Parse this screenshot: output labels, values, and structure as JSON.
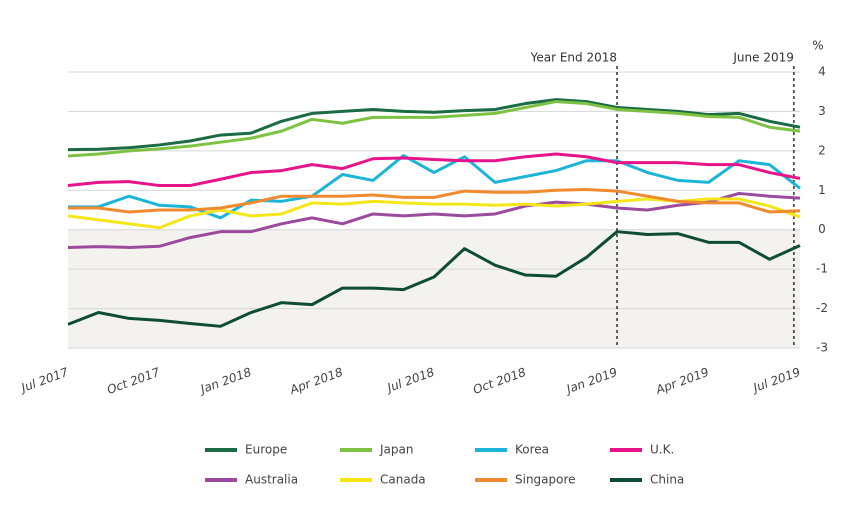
{
  "chart_data": {
    "type": "line",
    "y_label": "%",
    "categories": [
      "Jul 2017",
      null,
      null,
      "Oct 2017",
      null,
      null,
      "Jan 2018",
      null,
      null,
      "Apr 2018",
      null,
      null,
      "Jul 2018",
      null,
      null,
      "Oct 2018",
      null,
      null,
      "Jan 2019",
      null,
      null,
      "Apr 2019",
      null,
      null,
      "Jul 2019"
    ],
    "ylim": [
      -3,
      4
    ],
    "yticks": [
      4,
      3,
      2,
      1,
      0,
      -1,
      -2,
      -3
    ],
    "grid": true,
    "annotations": [
      {
        "text": "Year End 2018",
        "x": 18
      },
      {
        "text": "June 2019",
        "x": 23.8
      }
    ],
    "series": [
      {
        "name": "Europe",
        "color": "#1b6b44",
        "values": [
          2.03,
          2.04,
          2.08,
          2.15,
          2.25,
          2.4,
          2.45,
          2.75,
          2.95,
          3.0,
          3.05,
          3.0,
          2.98,
          3.02,
          3.05,
          3.2,
          3.3,
          3.25,
          3.1,
          3.05,
          3.0,
          2.92,
          2.95,
          2.75,
          2.6
        ]
      },
      {
        "name": "Japan",
        "color": "#7dc242",
        "values": [
          1.87,
          1.92,
          2.0,
          2.05,
          2.12,
          2.22,
          2.32,
          2.5,
          2.8,
          2.7,
          2.85,
          2.85,
          2.85,
          2.9,
          2.95,
          3.1,
          3.25,
          3.2,
          3.05,
          3.0,
          2.95,
          2.87,
          2.85,
          2.6,
          2.5
        ]
      },
      {
        "name": "Korea",
        "color": "#1cb5d8",
        "values": [
          0.58,
          0.58,
          0.85,
          0.62,
          0.58,
          0.3,
          0.75,
          0.72,
          0.85,
          1.4,
          1.25,
          1.88,
          1.45,
          1.85,
          1.2,
          1.35,
          1.5,
          1.75,
          1.75,
          1.45,
          1.25,
          1.2,
          1.75,
          1.65,
          1.05
        ]
      },
      {
        "name": "U.K.",
        "color": "#e6138a",
        "values": [
          1.12,
          1.2,
          1.22,
          1.12,
          1.12,
          1.28,
          1.45,
          1.5,
          1.65,
          1.55,
          1.8,
          1.82,
          1.78,
          1.75,
          1.75,
          1.85,
          1.92,
          1.85,
          1.7,
          1.7,
          1.7,
          1.65,
          1.65,
          1.45,
          1.3
        ]
      },
      {
        "name": "Australia",
        "color": "#9b4a9d",
        "values": [
          -0.45,
          -0.43,
          -0.45,
          -0.42,
          -0.2,
          -0.05,
          -0.05,
          0.15,
          0.3,
          0.15,
          0.4,
          0.35,
          0.4,
          0.35,
          0.4,
          0.6,
          0.7,
          0.65,
          0.55,
          0.5,
          0.62,
          0.7,
          0.92,
          0.85,
          0.8
        ]
      },
      {
        "name": "Canada",
        "color": "#f5e61a",
        "values": [
          0.35,
          0.25,
          0.15,
          0.05,
          0.35,
          0.5,
          0.35,
          0.4,
          0.68,
          0.65,
          0.72,
          0.68,
          0.65,
          0.65,
          0.62,
          0.65,
          0.6,
          0.65,
          0.72,
          0.78,
          0.72,
          0.78,
          0.78,
          0.6,
          0.32
        ]
      },
      {
        "name": "Singapore",
        "color": "#f08a2e",
        "values": [
          0.55,
          0.55,
          0.45,
          0.5,
          0.5,
          0.55,
          0.68,
          0.85,
          0.85,
          0.85,
          0.88,
          0.82,
          0.82,
          0.98,
          0.95,
          0.95,
          1.0,
          1.02,
          0.98,
          0.85,
          0.72,
          0.68,
          0.68,
          0.45,
          0.48
        ]
      },
      {
        "name": "China",
        "color": "#0e4d33",
        "values": [
          -2.4,
          -2.1,
          -2.25,
          -2.3,
          -2.38,
          -2.45,
          -2.1,
          -1.85,
          -1.9,
          -1.48,
          -1.48,
          -1.52,
          -1.2,
          -0.48,
          -0.9,
          -1.15,
          -1.18,
          -0.7,
          -0.05,
          -0.12,
          -0.1,
          -0.32,
          -0.32,
          -0.75,
          -0.4
        ]
      }
    ]
  }
}
